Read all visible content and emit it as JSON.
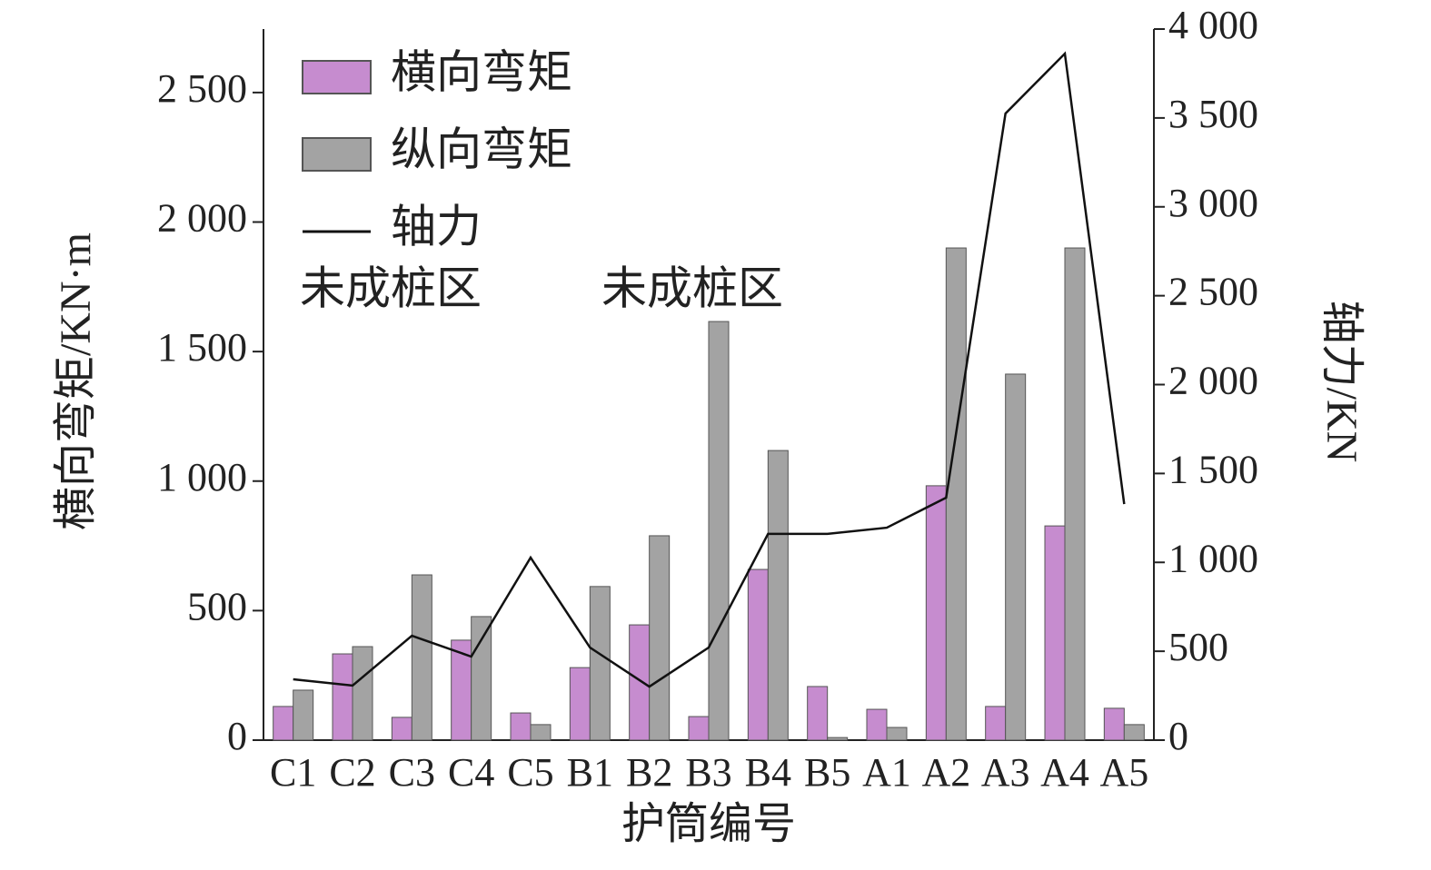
{
  "chart_data": {
    "type": "bar",
    "categories": [
      "C1",
      "C2",
      "C3",
      "C4",
      "C5",
      "B1",
      "B2",
      "B3",
      "B4",
      "B5",
      "A1",
      "A2",
      "A3",
      "A4",
      "A5"
    ],
    "series": [
      {
        "name": "横向弯矩",
        "color": "#c68ccf",
        "values": [
          130,
          333,
          88,
          386,
          105,
          280,
          445,
          91,
          659,
          207,
          119,
          982,
          130,
          827,
          123
        ]
      },
      {
        "name": "纵向弯矩",
        "color": "#a3a3a3",
        "values": [
          193,
          361,
          638,
          477,
          60,
          593,
          789,
          1616,
          1118,
          10,
          49,
          1900,
          1413,
          1900,
          60
        ]
      },
      {
        "name": "轴力",
        "color": "#111111",
        "type": "line",
        "axis": "y2",
        "values": [
          342,
          307,
          587,
          470,
          1027,
          521,
          301,
          521,
          1160,
          1160,
          1195,
          1364,
          3525,
          3862,
          1328
        ]
      }
    ],
    "xlabel": "护筒编号",
    "ylabel": "横向弯矩/KN·m",
    "y2label": "轴力/KN",
    "annotations": [
      "未成桩区",
      "未成桩区"
    ],
    "ylim": [
      0,
      2745
    ],
    "yticks": [
      0,
      500,
      {
        "value": 1000,
        "label": "1 000"
      },
      {
        "value": 1500,
        "label": "1 500"
      },
      {
        "value": 2000,
        "label": "2 000"
      },
      {
        "value": 2500,
        "label": "2 500"
      }
    ],
    "y2lim": [
      0,
      4000
    ],
    "y2ticks": [
      0,
      500,
      {
        "value": 1000,
        "label": "1 000"
      },
      {
        "value": 1500,
        "label": "1 500"
      },
      {
        "value": 2000,
        "label": "2 000"
      },
      {
        "value": 2500,
        "label": "2 500"
      },
      {
        "value": 3000,
        "label": "3 000"
      },
      {
        "value": 3500,
        "label": "3 500"
      },
      {
        "value": 4000,
        "label": "4 000"
      }
    ],
    "legend": "upper left",
    "grid": false
  }
}
